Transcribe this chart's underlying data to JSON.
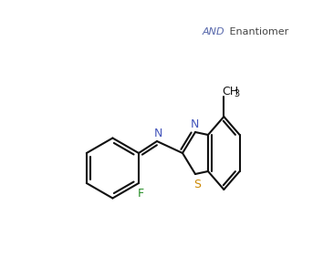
{
  "and_color": "#5566aa",
  "enantiomer_color": "#444444",
  "N_color": "#4455bb",
  "S_color": "#cc8800",
  "F_color": "#228B22",
  "bond_color": "#111111",
  "bg_color": "#ffffff",
  "F_label": "F",
  "N_label": "N",
  "S_label": "S",
  "CH3_label": "CH",
  "CH3_sub": "3",
  "and_text": "AND",
  "enantiomer_text": " Enantiomer"
}
